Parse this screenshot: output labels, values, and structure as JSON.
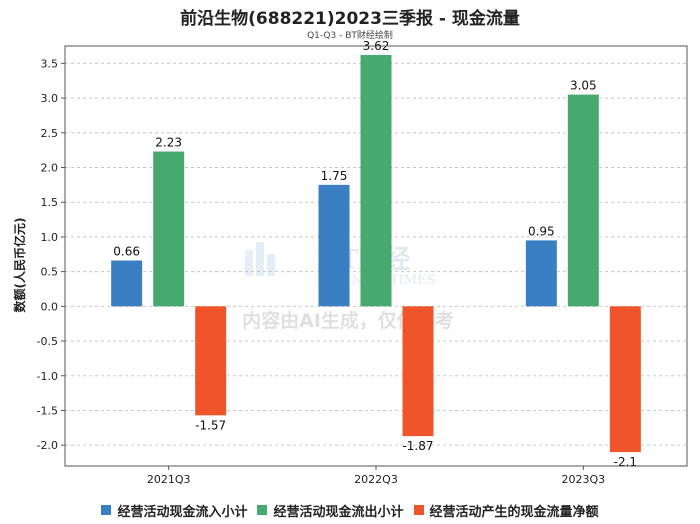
{
  "title": "前沿生物(688221)2023三季报 - 现金流量",
  "subtitle": "Q1-Q3 - BT财经绘制",
  "watermark": {
    "brand": "BT财经",
    "brand_en": "BUSINESSTIMES",
    "notice": "内容由AI生成，仅供参考"
  },
  "chart_data": {
    "type": "bar",
    "ylabel": "数额(人民币亿元)",
    "ylim": [
      -2.3,
      3.75
    ],
    "yticks": [
      -2.0,
      -1.5,
      -1.0,
      -0.5,
      0.0,
      0.5,
      1.0,
      1.5,
      2.0,
      2.5,
      3.0,
      3.5
    ],
    "categories": [
      "2021Q3",
      "2022Q3",
      "2023Q3"
    ],
    "series": [
      {
        "name": "经营活动现金流入小计",
        "color": "#3a7fc1",
        "values": [
          0.66,
          1.75,
          0.95
        ],
        "labels": [
          "0.66",
          "1.75",
          "0.95"
        ]
      },
      {
        "name": "经营活动现金流出小计",
        "color": "#46a96f",
        "values": [
          2.23,
          3.62,
          3.05
        ],
        "labels": [
          "2.23",
          "3.62",
          "3.05"
        ]
      },
      {
        "name": "经营活动产生的现金流量净额",
        "color": "#f0542a",
        "values": [
          -1.57,
          -1.87,
          -2.1
        ],
        "labels": [
          "-1.57",
          "-1.87",
          "-2.1"
        ]
      }
    ]
  }
}
